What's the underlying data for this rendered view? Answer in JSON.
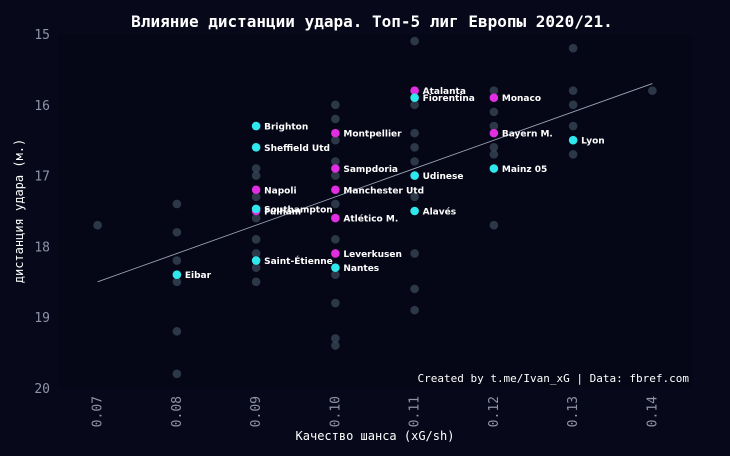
{
  "chart_data": {
    "type": "scatter",
    "title": "Влияние дистанции удара. Топ-5 лиг Европы 2020/21.",
    "xlabel": "Качество шанса (xG/sh)",
    "ylabel": "дистанция удара (м.)",
    "credit": "Created by t.me/Ivan_xG | Data: fbref.com",
    "xlim": [
      0.065,
      0.145
    ],
    "ylim": [
      20,
      15
    ],
    "y_inverted": true,
    "grid": false,
    "xticks": [
      "0.07",
      "0.08",
      "0.09",
      "0.10",
      "0.11",
      "0.12",
      "0.13",
      "0.14"
    ],
    "yticks": [
      "15",
      "16",
      "17",
      "18",
      "19",
      "20"
    ],
    "colors": {
      "background": "#07081a",
      "plot_background": "#060716",
      "background_points": "#3a4a58",
      "cyan": "#2ee8ee",
      "magenta": "#e02ee0",
      "trend": "#9aa4b6"
    },
    "trend_line": {
      "x": [
        0.07,
        0.14
      ],
      "y": [
        18.5,
        15.7
      ]
    },
    "background_points": [
      {
        "x": 0.07,
        "y": 17.7
      },
      {
        "x": 0.08,
        "y": 17.4
      },
      {
        "x": 0.08,
        "y": 17.8
      },
      {
        "x": 0.08,
        "y": 18.2
      },
      {
        "x": 0.08,
        "y": 18.5
      },
      {
        "x": 0.08,
        "y": 19.2
      },
      {
        "x": 0.08,
        "y": 19.8
      },
      {
        "x": 0.09,
        "y": 16.9
      },
      {
        "x": 0.09,
        "y": 17.0
      },
      {
        "x": 0.09,
        "y": 17.3
      },
      {
        "x": 0.09,
        "y": 17.6
      },
      {
        "x": 0.09,
        "y": 17.9
      },
      {
        "x": 0.09,
        "y": 18.1
      },
      {
        "x": 0.09,
        "y": 18.3
      },
      {
        "x": 0.09,
        "y": 18.5
      },
      {
        "x": 0.1,
        "y": 16.0
      },
      {
        "x": 0.1,
        "y": 16.2
      },
      {
        "x": 0.1,
        "y": 16.5
      },
      {
        "x": 0.1,
        "y": 16.8
      },
      {
        "x": 0.1,
        "y": 17.0
      },
      {
        "x": 0.1,
        "y": 17.4
      },
      {
        "x": 0.1,
        "y": 17.9
      },
      {
        "x": 0.1,
        "y": 18.4
      },
      {
        "x": 0.1,
        "y": 18.8
      },
      {
        "x": 0.1,
        "y": 19.3
      },
      {
        "x": 0.1,
        "y": 19.4
      },
      {
        "x": 0.11,
        "y": 15.1
      },
      {
        "x": 0.11,
        "y": 16.0
      },
      {
        "x": 0.11,
        "y": 16.4
      },
      {
        "x": 0.11,
        "y": 16.6
      },
      {
        "x": 0.11,
        "y": 16.8
      },
      {
        "x": 0.11,
        "y": 17.3
      },
      {
        "x": 0.11,
        "y": 18.1
      },
      {
        "x": 0.11,
        "y": 18.6
      },
      {
        "x": 0.11,
        "y": 18.9
      },
      {
        "x": 0.12,
        "y": 15.8
      },
      {
        "x": 0.12,
        "y": 16.1
      },
      {
        "x": 0.12,
        "y": 16.3
      },
      {
        "x": 0.12,
        "y": 16.6
      },
      {
        "x": 0.12,
        "y": 16.7
      },
      {
        "x": 0.12,
        "y": 17.7
      },
      {
        "x": 0.13,
        "y": 15.2
      },
      {
        "x": 0.13,
        "y": 15.8
      },
      {
        "x": 0.13,
        "y": 16.0
      },
      {
        "x": 0.13,
        "y": 16.3
      },
      {
        "x": 0.13,
        "y": 16.7
      },
      {
        "x": 0.14,
        "y": 15.8
      }
    ],
    "teams": [
      {
        "name": "Atalanta",
        "x": 0.11,
        "y": 15.8,
        "color": "magenta"
      },
      {
        "name": "Fiorentina",
        "x": 0.11,
        "y": 15.9,
        "color": "cyan"
      },
      {
        "name": "Monaco",
        "x": 0.12,
        "y": 15.9,
        "color": "magenta"
      },
      {
        "name": "Brighton",
        "x": 0.09,
        "y": 16.3,
        "color": "cyan"
      },
      {
        "name": "Montpellier",
        "x": 0.1,
        "y": 16.4,
        "color": "magenta"
      },
      {
        "name": "Bayern M.",
        "x": 0.12,
        "y": 16.4,
        "color": "magenta"
      },
      {
        "name": "Lyon",
        "x": 0.13,
        "y": 16.5,
        "color": "cyan"
      },
      {
        "name": "Sheffield Utd",
        "x": 0.09,
        "y": 16.6,
        "color": "cyan"
      },
      {
        "name": "Sampdoria",
        "x": 0.1,
        "y": 16.9,
        "color": "magenta"
      },
      {
        "name": "Mainz 05",
        "x": 0.12,
        "y": 16.9,
        "color": "cyan"
      },
      {
        "name": "Udinese",
        "x": 0.11,
        "y": 17.0,
        "color": "cyan"
      },
      {
        "name": "Napoli",
        "x": 0.09,
        "y": 17.2,
        "color": "magenta"
      },
      {
        "name": "Manchester Utd",
        "x": 0.1,
        "y": 17.2,
        "color": "magenta"
      },
      {
        "name": "Fulham",
        "x": 0.09,
        "y": 17.5,
        "color": "magenta"
      },
      {
        "name": "Southampton",
        "x": 0.09,
        "y": 17.47,
        "color": "cyan"
      },
      {
        "name": "Alavés",
        "x": 0.11,
        "y": 17.5,
        "color": "cyan"
      },
      {
        "name": "Atlético M.",
        "x": 0.1,
        "y": 17.6,
        "color": "magenta"
      },
      {
        "name": "Leverkusen",
        "x": 0.1,
        "y": 18.1,
        "color": "magenta"
      },
      {
        "name": "Saint-Étienne",
        "x": 0.09,
        "y": 18.2,
        "color": "cyan"
      },
      {
        "name": "Nantes",
        "x": 0.1,
        "y": 18.3,
        "color": "cyan"
      },
      {
        "name": "Eibar",
        "x": 0.08,
        "y": 18.4,
        "color": "cyan"
      }
    ]
  }
}
